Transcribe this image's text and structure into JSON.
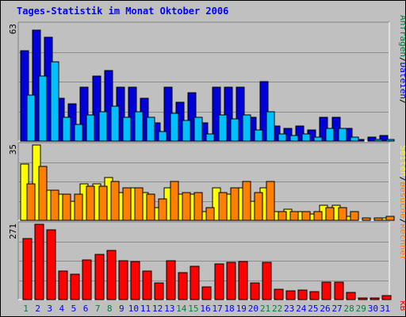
{
  "title": "Tages-Statistik im Monat Oktober 2006",
  "colors": {
    "anfragen": "#0000d8",
    "dateien": "#00c0ff",
    "seiten": "#ffff00",
    "rechner": "#ff8000",
    "kb": "#ff0000",
    "weekend_label": "#008040",
    "weekday_label": "#0000ff",
    "plot_bg": "#c0c0c0",
    "grid": "#8c8c8c"
  },
  "chart_data": [
    {
      "type": "bar",
      "panel": "top",
      "ymax_label": "63",
      "ylim": [
        0,
        63
      ],
      "right_labels": [
        {
          "text": "Anfragen",
          "color": "#008040"
        },
        {
          "text": "/",
          "color": "#000000"
        },
        {
          "text": "Dateien",
          "color": "#0000ff"
        },
        {
          "text": "/",
          "color": "#000000"
        }
      ],
      "categories": [
        "1",
        "2",
        "3",
        "4",
        "5",
        "6",
        "7",
        "8",
        "9",
        "10",
        "11",
        "12",
        "13",
        "14",
        "15",
        "16",
        "17",
        "18",
        "19",
        "20",
        "21",
        "22",
        "23",
        "24",
        "25",
        "26",
        "27",
        "28",
        "29",
        "30",
        "31"
      ],
      "series": [
        {
          "name": "Anfragen",
          "color": "#0000d8",
          "values": [
            49,
            60,
            56,
            23,
            20,
            29,
            35,
            38,
            29,
            29,
            23,
            10,
            29,
            21,
            26,
            10,
            29,
            29,
            29,
            13,
            32,
            8,
            7,
            8,
            6,
            13,
            13,
            7,
            1,
            2,
            3
          ]
        },
        {
          "name": "Dateien",
          "color": "#00c0ff",
          "values": [
            25,
            35,
            43,
            13,
            9,
            14,
            16,
            19,
            13,
            16,
            13,
            5,
            15,
            11,
            13,
            4,
            14,
            12,
            14,
            6,
            16,
            4,
            3,
            4,
            2,
            7,
            7,
            2,
            0,
            1,
            1
          ]
        }
      ]
    },
    {
      "type": "bar",
      "panel": "middle",
      "ymax_label": "35",
      "ylim": [
        0,
        35
      ],
      "right_labels": [
        {
          "text": "Seiten",
          "color": "#ffff00"
        },
        {
          "text": "/",
          "color": "#000000"
        },
        {
          "text": "Besuche",
          "color": "#ff8000"
        },
        {
          "text": "/",
          "color": "#000000"
        },
        {
          "text": "Rechner",
          "color": "#ff8000"
        }
      ],
      "categories": [
        "1",
        "2",
        "3",
        "4",
        "5",
        "6",
        "7",
        "8",
        "9",
        "10",
        "11",
        "12",
        "13",
        "14",
        "15",
        "16",
        "17",
        "18",
        "19",
        "20",
        "21",
        "22",
        "23",
        "24",
        "25",
        "26",
        "27",
        "28",
        "29",
        "30",
        "31"
      ],
      "series": [
        {
          "name": "Seiten",
          "color": "#ffff00",
          "values": [
            26,
            35,
            14,
            12,
            9,
            17,
            17,
            20,
            13,
            15,
            13,
            6,
            15,
            12,
            12,
            4,
            15,
            12,
            15,
            9,
            15,
            4,
            5,
            4,
            3,
            7,
            7,
            2,
            0,
            0,
            1
          ]
        },
        {
          "name": "Rechner",
          "color": "#ff8000",
          "values": [
            17,
            25,
            14,
            12,
            12,
            16,
            16,
            18,
            15,
            15,
            12,
            10,
            18,
            13,
            13,
            6,
            13,
            15,
            18,
            13,
            18,
            4,
            4,
            4,
            4,
            6,
            6,
            4,
            1,
            1,
            2
          ]
        }
      ]
    },
    {
      "type": "bar",
      "panel": "bottom",
      "ymax_label": "271",
      "ylim": [
        0,
        271
      ],
      "right_labels": [
        {
          "text": "kB",
          "color": "#ff0000"
        }
      ],
      "categories": [
        "1",
        "2",
        "3",
        "4",
        "5",
        "6",
        "7",
        "8",
        "9",
        "10",
        "11",
        "12",
        "13",
        "14",
        "15",
        "16",
        "17",
        "18",
        "19",
        "20",
        "21",
        "22",
        "23",
        "24",
        "25",
        "26",
        "27",
        "28",
        "29",
        "30",
        "31"
      ],
      "series": [
        {
          "name": "kB",
          "color": "#ff0000",
          "values": [
            221,
            271,
            251,
            104,
            92,
            144,
            163,
            176,
            141,
            137,
            104,
            59,
            140,
            96,
            120,
            46,
            128,
            134,
            136,
            59,
            134,
            36,
            31,
            33,
            29,
            62,
            62,
            25,
            6,
            6,
            15
          ]
        }
      ],
      "weekend_days": [
        1,
        7,
        8,
        14,
        15,
        21,
        22,
        28,
        29
      ]
    }
  ]
}
